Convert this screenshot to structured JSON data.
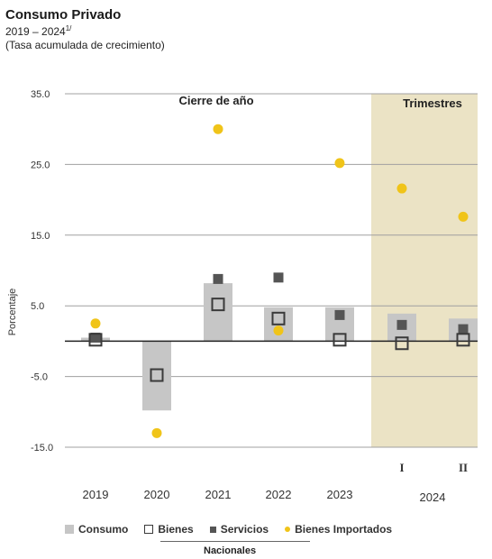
{
  "header": {
    "title": "Consumo Privado",
    "subtitle": "2019 – 2024",
    "subtitle_sup": "1/",
    "note": "(Tasa acumulada de crecimiento)"
  },
  "chart_data": {
    "type": "bar",
    "ylabel": "Porcentaje",
    "ylim": [
      -15,
      35
    ],
    "yticks": [
      "35.0",
      "25.0",
      "15.0",
      "5.0",
      "-5.0",
      "-15.0"
    ],
    "ytick_values": [
      35,
      25,
      15,
      5,
      -5,
      -15
    ],
    "panels": [
      {
        "label": "Cierre de año",
        "shaded": false
      },
      {
        "label": "Trimestres",
        "shaded": true
      }
    ],
    "categories": [
      "2019",
      "2020",
      "2021",
      "2022",
      "2023",
      "I",
      "II"
    ],
    "group_label": "2024",
    "series": [
      {
        "name": "Consumo",
        "kind": "bar",
        "values": [
          0.5,
          -9.8,
          8.2,
          4.8,
          4.8,
          3.9,
          3.2
        ]
      },
      {
        "name": "Bienes",
        "kind": "hollow-square",
        "values": [
          0.2,
          -4.8,
          5.2,
          3.2,
          0.2,
          -0.3,
          0.2
        ]
      },
      {
        "name": "Servicios",
        "kind": "square",
        "values": [
          0.5,
          null,
          8.8,
          9.0,
          3.7,
          2.3,
          1.7
        ]
      },
      {
        "name": "Bienes Importados",
        "kind": "dot",
        "values": [
          2.5,
          -13.0,
          30.0,
          1.5,
          25.2,
          21.6,
          17.6
        ]
      }
    ],
    "legend_group": "Nacionales",
    "colors": {
      "consumo": "#c6c6c6",
      "bienes": "#3a3a3a",
      "servicios": "#555555",
      "importados": "#f0c419",
      "panel_bg": "#ebe3c5"
    }
  }
}
